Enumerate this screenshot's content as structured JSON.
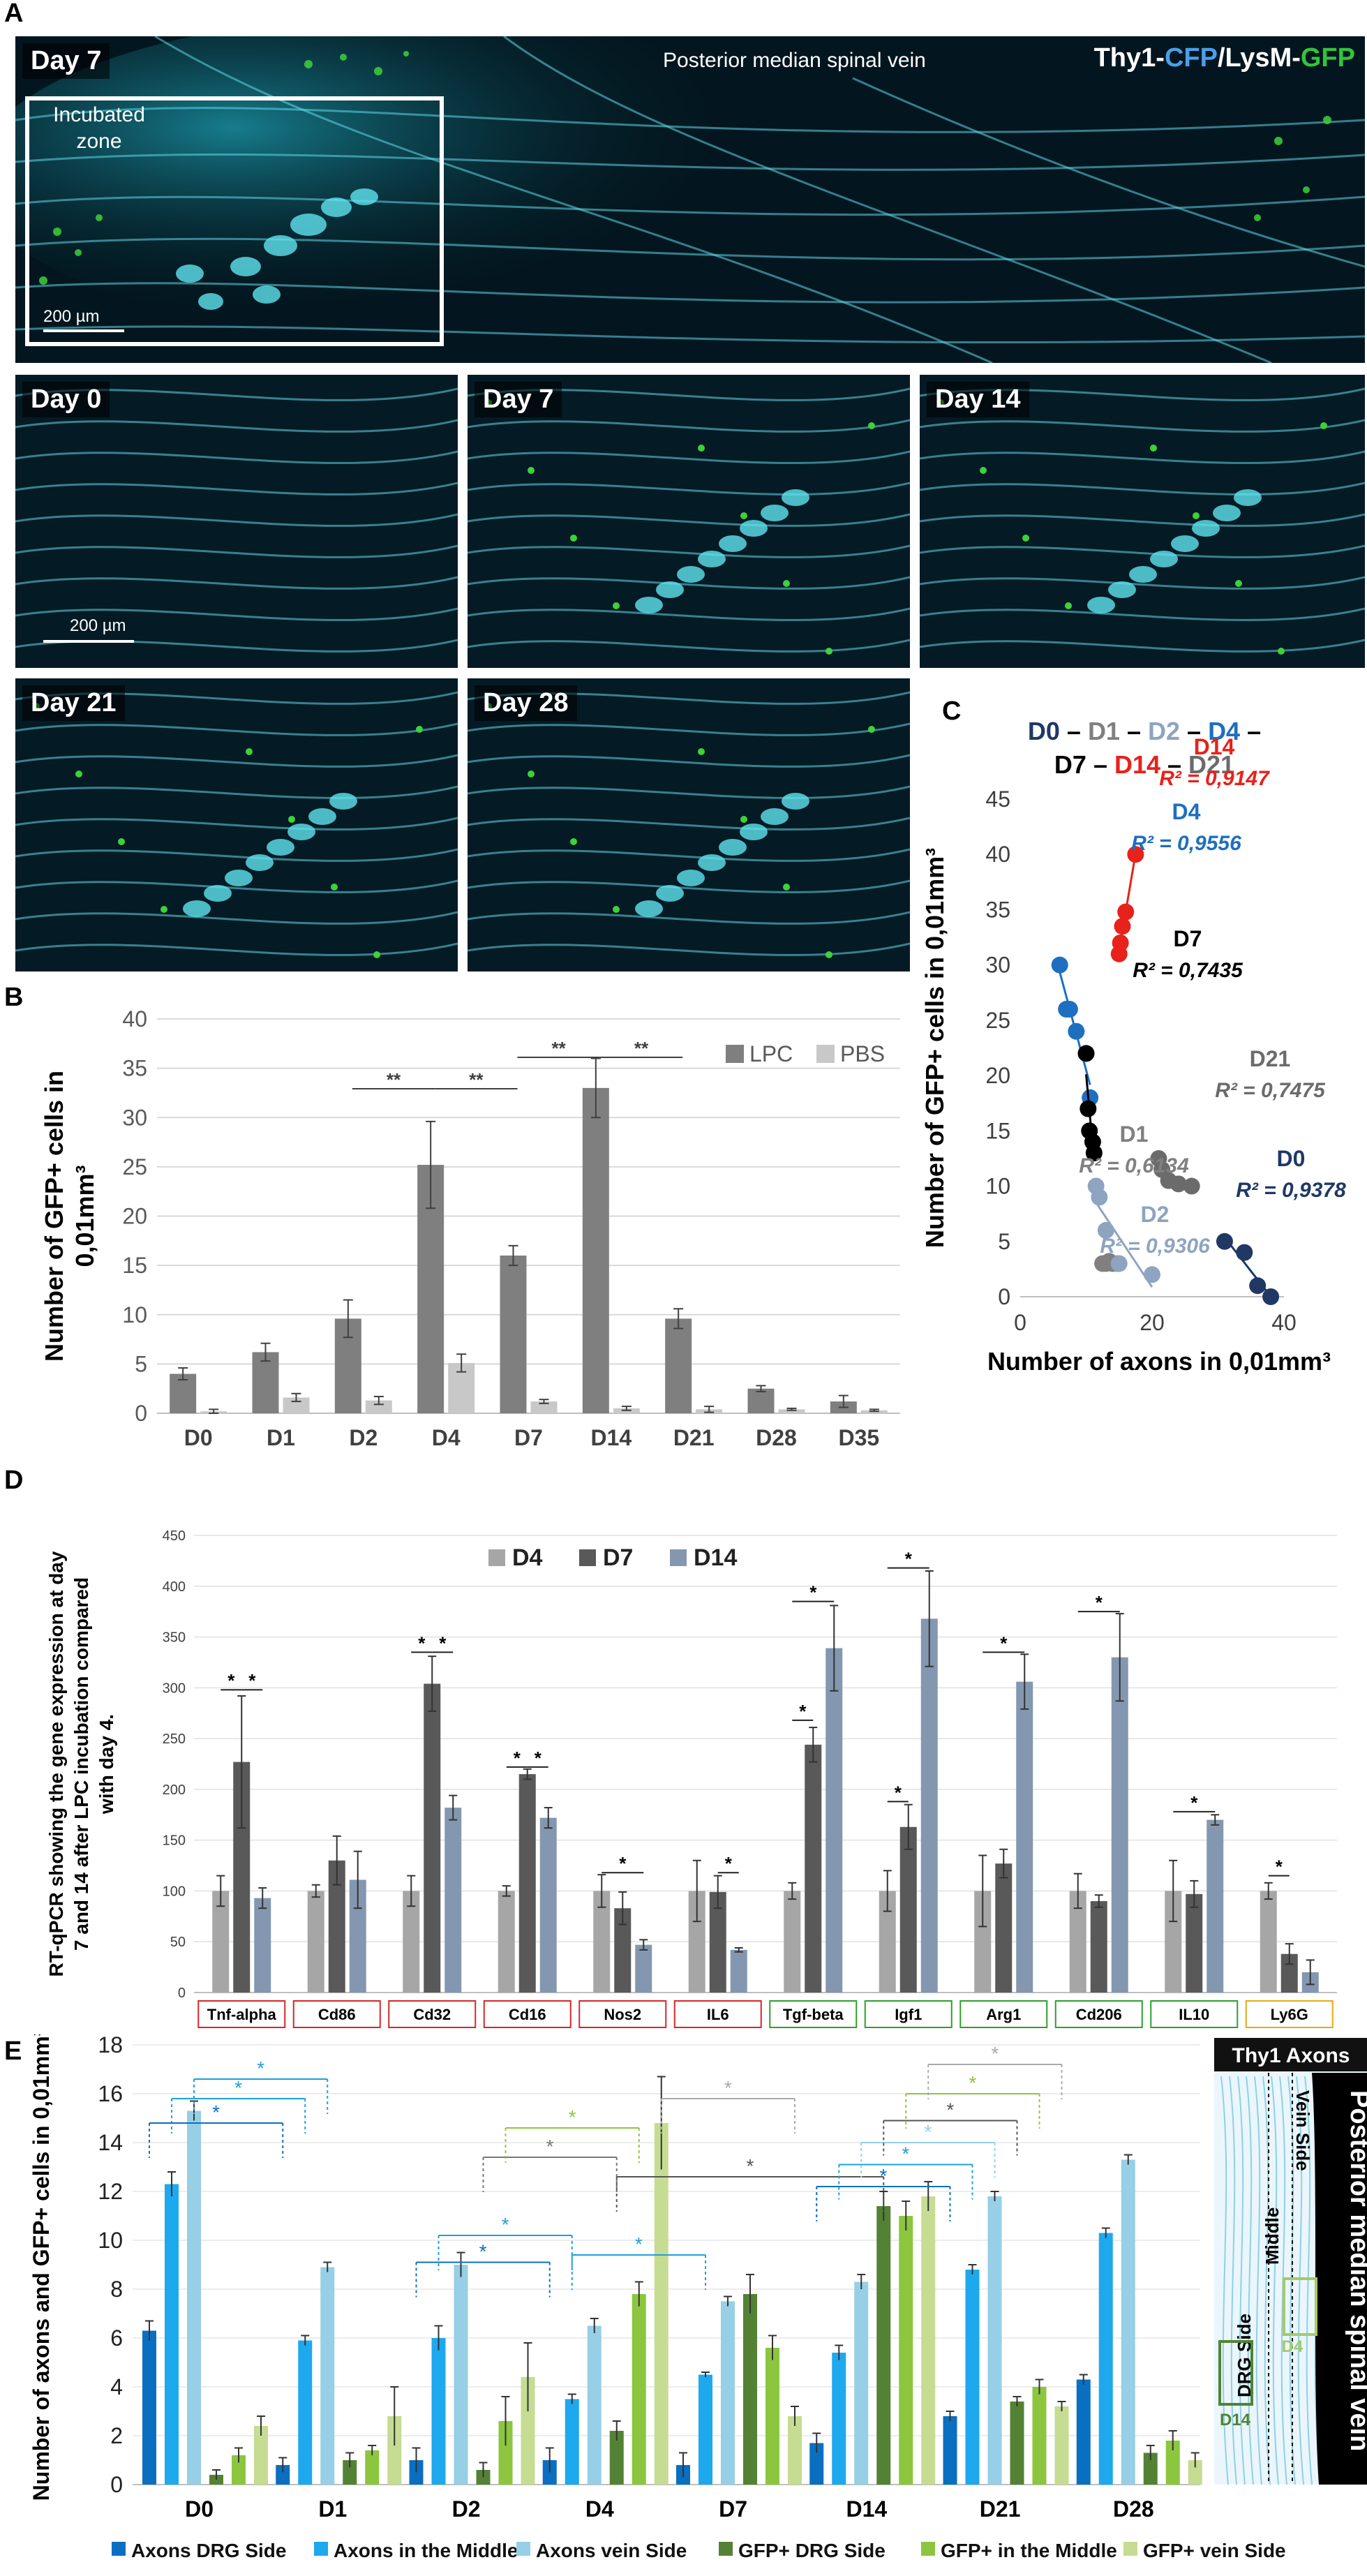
{
  "panel_labels": [
    "A",
    "B",
    "C",
    "D",
    "E"
  ],
  "panel_a": {
    "top": {
      "day": "Day 7",
      "title": "Posterior median spinal vein",
      "inc1": "Incubated",
      "inc2": "zone",
      "scale": "200 µm"
    },
    "legend": {
      "p1": "Thy1-",
      "p2": "CFP",
      "p3": "/LysM-",
      "p4": "GFP"
    },
    "tiles": [
      {
        "day": "Day 0",
        "scale": "200 µm"
      },
      {
        "day": "Day 7"
      },
      {
        "day": "Day 14"
      },
      {
        "day": "Day 21"
      },
      {
        "day": "Day 28"
      }
    ]
  },
  "chart_data": [
    {
      "panel": "B",
      "type": "bar",
      "ylabel": "Number of GFP+ cells in 0,01mm³",
      "ylim": [
        0,
        40
      ],
      "yticks": [
        0,
        5,
        10,
        15,
        20,
        25,
        30,
        35,
        40
      ],
      "categories": [
        "D0",
        "D1",
        "D2",
        "D4",
        "D7",
        "D14",
        "D21",
        "D28",
        "D35"
      ],
      "series": [
        {
          "name": "LPC",
          "color": "#7f7f7f",
          "values": [
            4,
            6.2,
            9.6,
            25.2,
            16,
            33,
            9.6,
            2.5,
            1.2
          ],
          "errors": [
            0.6,
            0.9,
            1.9,
            4.4,
            1,
            3,
            1,
            0.3,
            0.6
          ]
        },
        {
          "name": "PBS",
          "color": "#c8c8c8",
          "values": [
            0.2,
            1.6,
            1.3,
            5.1,
            1.2,
            0.5,
            0.4,
            0.4,
            0.3
          ],
          "errors": [
            0.2,
            0.4,
            0.4,
            0.9,
            0.2,
            0.2,
            0.3,
            0.1,
            0.1
          ]
        }
      ],
      "significance": [
        {
          "from": "D2",
          "to": "D4",
          "label": "**"
        },
        {
          "from": "D4",
          "to": "D7",
          "label": "**"
        },
        {
          "from": "D7",
          "to": "D14",
          "label": "**"
        },
        {
          "from": "D14",
          "to": "D21",
          "label": "**"
        }
      ]
    },
    {
      "panel": "C",
      "type": "scatter",
      "title_line1": [
        "D0",
        " – ",
        "D1",
        " – ",
        "D2",
        " – ",
        "D4",
        " –"
      ],
      "title_line2": [
        "D7",
        " – ",
        "D14",
        " – ",
        "D21"
      ],
      "xlabel": "Number of axons in 0,01mm³",
      "ylabel": "Number of GFP+ cells in 0,01mm³",
      "xlim": [
        0,
        40
      ],
      "ylim": [
        0,
        45
      ],
      "xticks": [
        0,
        20,
        40
      ],
      "yticks": [
        0,
        5,
        10,
        15,
        20,
        25,
        30,
        35,
        40,
        45
      ],
      "series": [
        {
          "name": "D14",
          "r2": "R² = 0,9147",
          "color": "#e8211b",
          "points": [
            [
              15,
              31
            ],
            [
              15.2,
              32
            ],
            [
              15.5,
              33.5
            ],
            [
              16,
              34.8
            ],
            [
              17.5,
              40
            ]
          ]
        },
        {
          "name": "D4",
          "r2": "R² = 0,9556",
          "color": "#1e6fbf",
          "points": [
            [
              6,
              30
            ],
            [
              7,
              26
            ],
            [
              7.5,
              26
            ],
            [
              8.5,
              24
            ],
            [
              10,
              22
            ],
            [
              10.6,
              18
            ]
          ]
        },
        {
          "name": "D7",
          "r2": "R² = 0,7435",
          "color": "#000000",
          "points": [
            [
              10,
              22
            ],
            [
              10.3,
              17
            ],
            [
              10.5,
              15
            ],
            [
              11,
              14
            ],
            [
              11.2,
              13
            ]
          ]
        },
        {
          "name": "D21",
          "r2": "R² = 0,7475",
          "color": "#6b6b6b",
          "points": [
            [
              21,
              12.5
            ],
            [
              21.5,
              11.5
            ],
            [
              22.5,
              10.5
            ],
            [
              24,
              10.2
            ],
            [
              26,
              10
            ]
          ]
        },
        {
          "name": "D1",
          "r2": "R² = 0,6134",
          "color": "#808080",
          "points": [
            [
              12.5,
              3
            ],
            [
              13,
              3
            ],
            [
              13.5,
              3.2
            ],
            [
              14,
              3
            ],
            [
              14.8,
              3
            ]
          ]
        },
        {
          "name": "D2",
          "r2": "R² = 0,9306",
          "color": "#8ea4c0",
          "points": [
            [
              11.5,
              10
            ],
            [
              12,
              9
            ],
            [
              13,
              6
            ],
            [
              15,
              3
            ],
            [
              20,
              2
            ]
          ]
        },
        {
          "name": "D0",
          "r2": "R² = 0,9378",
          "color": "#203864",
          "points": [
            [
              31,
              5
            ],
            [
              34,
              4
            ],
            [
              36,
              1
            ],
            [
              38,
              0
            ]
          ]
        }
      ]
    },
    {
      "panel": "D",
      "type": "bar",
      "ylabel": "RT-qPCR showing the gene expression at day 7 and 14 after LPC incubation compared with day 4.",
      "ylim": [
        0,
        450
      ],
      "yticks": [
        0,
        50,
        100,
        150,
        200,
        250,
        300,
        350,
        400,
        450
      ],
      "categories": [
        "Tnf-alpha",
        "Cd86",
        "Cd32",
        "Cd16",
        "Nos2",
        "IL6",
        "Tgf-beta",
        "Igf1",
        "Arg1",
        "Cd206",
        "IL10",
        "Ly6G"
      ],
      "category_box_colors": [
        "#d62728",
        "#d62728",
        "#d62728",
        "#d62728",
        "#d62728",
        "#d62728",
        "#2ca02c",
        "#2ca02c",
        "#2ca02c",
        "#2ca02c",
        "#2ca02c",
        "#e6a817"
      ],
      "series": [
        {
          "name": "D4",
          "color": "#a6a6a6",
          "values": [
            100,
            100,
            100,
            100,
            100,
            100,
            100,
            100,
            100,
            100,
            100,
            100
          ],
          "errors": [
            15,
            6,
            15,
            5,
            16,
            30,
            8,
            20,
            35,
            17,
            30,
            8
          ]
        },
        {
          "name": "D7",
          "color": "#595959",
          "values": [
            227,
            130,
            304,
            215,
            83,
            99,
            244,
            163,
            127,
            90,
            97,
            38
          ],
          "errors": [
            65,
            24,
            27,
            5,
            16,
            16,
            17,
            22,
            14,
            6,
            13,
            10
          ]
        },
        {
          "name": "D14",
          "color": "#8497b0",
          "values": [
            93,
            111,
            182,
            172,
            47,
            42,
            339,
            368,
            306,
            330,
            170,
            20
          ]
        }
      ],
      "d14_errors": [
        10,
        28,
        12,
        10,
        5,
        2,
        42,
        47,
        27,
        43,
        5,
        12
      ],
      "significance": [
        {
          "cat": "Tnf-alpha",
          "a": 0,
          "b": 1,
          "y": 298
        },
        {
          "cat": "Tnf-alpha",
          "a": 1,
          "b": 2,
          "y": 298
        },
        {
          "cat": "Cd32",
          "a": 0,
          "b": 1,
          "y": 335
        },
        {
          "cat": "Cd32",
          "a": 1,
          "b": 2,
          "y": 335
        },
        {
          "cat": "Cd16",
          "a": 0,
          "b": 1,
          "y": 222
        },
        {
          "cat": "Cd16",
          "a": 1,
          "b": 2,
          "y": 222
        },
        {
          "cat": "Nos2",
          "a": 0,
          "b": 2,
          "y": 118
        },
        {
          "cat": "IL6",
          "a": 1,
          "b": 2,
          "y": 118
        },
        {
          "cat": "Tgf-beta",
          "a": 0,
          "b": 1,
          "y": 268
        },
        {
          "cat": "Tgf-beta",
          "a": 0,
          "b": 2,
          "y": 385
        },
        {
          "cat": "Igf1",
          "a": 0,
          "b": 1,
          "y": 188
        },
        {
          "cat": "Igf1",
          "a": 0,
          "b": 2,
          "y": 418
        },
        {
          "cat": "Arg1",
          "a": 0,
          "b": 2,
          "y": 335
        },
        {
          "cat": "Cd206",
          "a": 0,
          "b": 2,
          "y": 375
        },
        {
          "cat": "IL10",
          "a": 0,
          "b": 2,
          "y": 178
        },
        {
          "cat": "Ly6G",
          "a": 0,
          "b": 1,
          "y": 115
        }
      ]
    },
    {
      "panel": "E",
      "type": "bar",
      "ylabel": "Number of axons and GFP+ cells in 0,01mm³",
      "ylim": [
        0,
        18
      ],
      "yticks": [
        0,
        2,
        4,
        6,
        8,
        10,
        12,
        14,
        16,
        18
      ],
      "categories": [
        "D0",
        "D1",
        "D2",
        "D4",
        "D7",
        "D14",
        "D21",
        "D28"
      ],
      "series": [
        {
          "name": "Axons DRG Side",
          "color": "#0b6fc1",
          "values": [
            6.3,
            0.8,
            1.0,
            1.0,
            0.8,
            1.7,
            2.8,
            4.3
          ],
          "errors": [
            0.4,
            0.3,
            0.5,
            0.5,
            0.5,
            0.4,
            0.2,
            0.2
          ]
        },
        {
          "name": "Axons in the Middle",
          "color": "#1ea8ee",
          "values": [
            12.3,
            5.9,
            6.0,
            3.5,
            4.5,
            5.4,
            8.8,
            10.3
          ],
          "errors": [
            0.5,
            0.2,
            0.5,
            0.2,
            0.1,
            0.3,
            0.2,
            0.2
          ]
        },
        {
          "name": "Axons vein Side",
          "color": "#96cfe6",
          "values": [
            15.3,
            8.9,
            9.0,
            6.5,
            7.5,
            8.3,
            11.8,
            13.3
          ],
          "errors": [
            0.4,
            0.2,
            0.5,
            0.3,
            0.2,
            0.3,
            0.2,
            0.2
          ]
        },
        {
          "name": "GFP+ DRG Side",
          "color": "#548235",
          "values": [
            0.4,
            1.0,
            0.6,
            2.2,
            7.8,
            11.4,
            3.4,
            1.3
          ],
          "errors": [
            0.2,
            0.3,
            0.3,
            0.4,
            0.8,
            0.6,
            0.2,
            0.3
          ]
        },
        {
          "name": "GFP+ in the Middle",
          "color": "#8cc63f",
          "values": [
            1.2,
            1.4,
            2.6,
            7.8,
            5.6,
            11.0,
            4.0,
            1.8
          ],
          "errors": [
            0.3,
            0.2,
            1.0,
            0.5,
            0.5,
            0.6,
            0.3,
            0.4
          ]
        },
        {
          "name": "GFP+ vein Side",
          "color": "#c5dc92",
          "values": [
            2.4,
            2.8,
            4.4,
            14.8,
            2.8,
            11.8,
            3.2,
            1.0
          ],
          "errors": [
            0.4,
            1.2,
            1.4,
            1.9,
            0.4,
            0.6,
            0.2,
            0.3
          ]
        }
      ],
      "diagram": {
        "title": "Thy1 Axons",
        "vein": "Posterior median spinal vein",
        "z1": "DRG Side",
        "z2": "Middle",
        "z3": "Vein Side",
        "tag1": "D14",
        "tag2": "D4"
      }
    }
  ]
}
